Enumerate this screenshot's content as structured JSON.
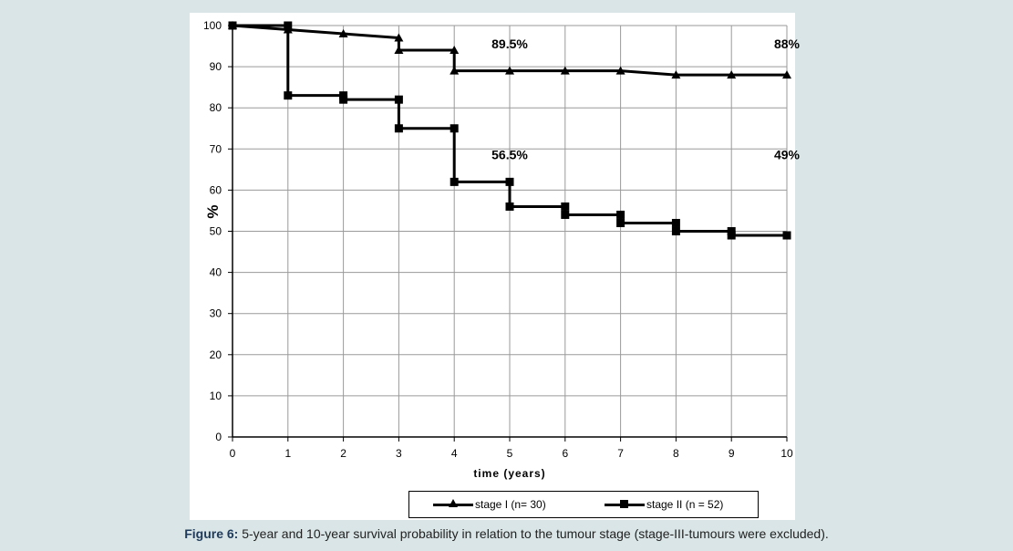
{
  "chart_data": {
    "type": "line",
    "title": "",
    "xlabel": "time (years)",
    "ylabel": "%",
    "xlim": [
      0,
      10
    ],
    "ylim": [
      0,
      100
    ],
    "x_ticks": [
      0,
      1,
      2,
      3,
      4,
      5,
      6,
      7,
      8,
      9,
      10
    ],
    "y_ticks": [
      0,
      10,
      20,
      30,
      40,
      50,
      60,
      70,
      80,
      90,
      100
    ],
    "grid": true,
    "step": true,
    "legend_position": "bottom",
    "series": [
      {
        "name": "stage I (n= 30)",
        "marker": "triangle",
        "color": "#000000",
        "points": [
          [
            0,
            100
          ],
          [
            1,
            99
          ],
          [
            2,
            98
          ],
          [
            3,
            97
          ],
          [
            3,
            94
          ],
          [
            4,
            94
          ],
          [
            4,
            89
          ],
          [
            5,
            89
          ],
          [
            6,
            89
          ],
          [
            7,
            89
          ],
          [
            8,
            88
          ],
          [
            9,
            88
          ],
          [
            10,
            88
          ]
        ]
      },
      {
        "name": "stage II (n = 52)",
        "marker": "square",
        "color": "#000000",
        "points": [
          [
            0,
            100
          ],
          [
            1,
            100
          ],
          [
            1,
            83
          ],
          [
            2,
            83
          ],
          [
            2,
            82
          ],
          [
            3,
            82
          ],
          [
            3,
            75
          ],
          [
            4,
            75
          ],
          [
            4,
            62
          ],
          [
            5,
            62
          ],
          [
            5,
            56
          ],
          [
            6,
            56
          ],
          [
            6,
            54
          ],
          [
            7,
            54
          ],
          [
            7,
            52
          ],
          [
            8,
            52
          ],
          [
            8,
            50
          ],
          [
            9,
            50
          ],
          [
            9,
            49
          ],
          [
            10,
            49
          ]
        ]
      }
    ],
    "annotations": [
      {
        "text": "89.5%",
        "x": 5,
        "y": 94.5
      },
      {
        "text": "88%",
        "x": 10,
        "y": 94.5
      },
      {
        "text": "56.5%",
        "x": 5,
        "y": 67.5
      },
      {
        "text": "49%",
        "x": 10,
        "y": 67.5
      }
    ]
  },
  "caption": {
    "label": "Figure 6:",
    "text": " 5-year and 10-year survival probability in relation to the tumour stage (stage-III-tumours were excluded)."
  }
}
